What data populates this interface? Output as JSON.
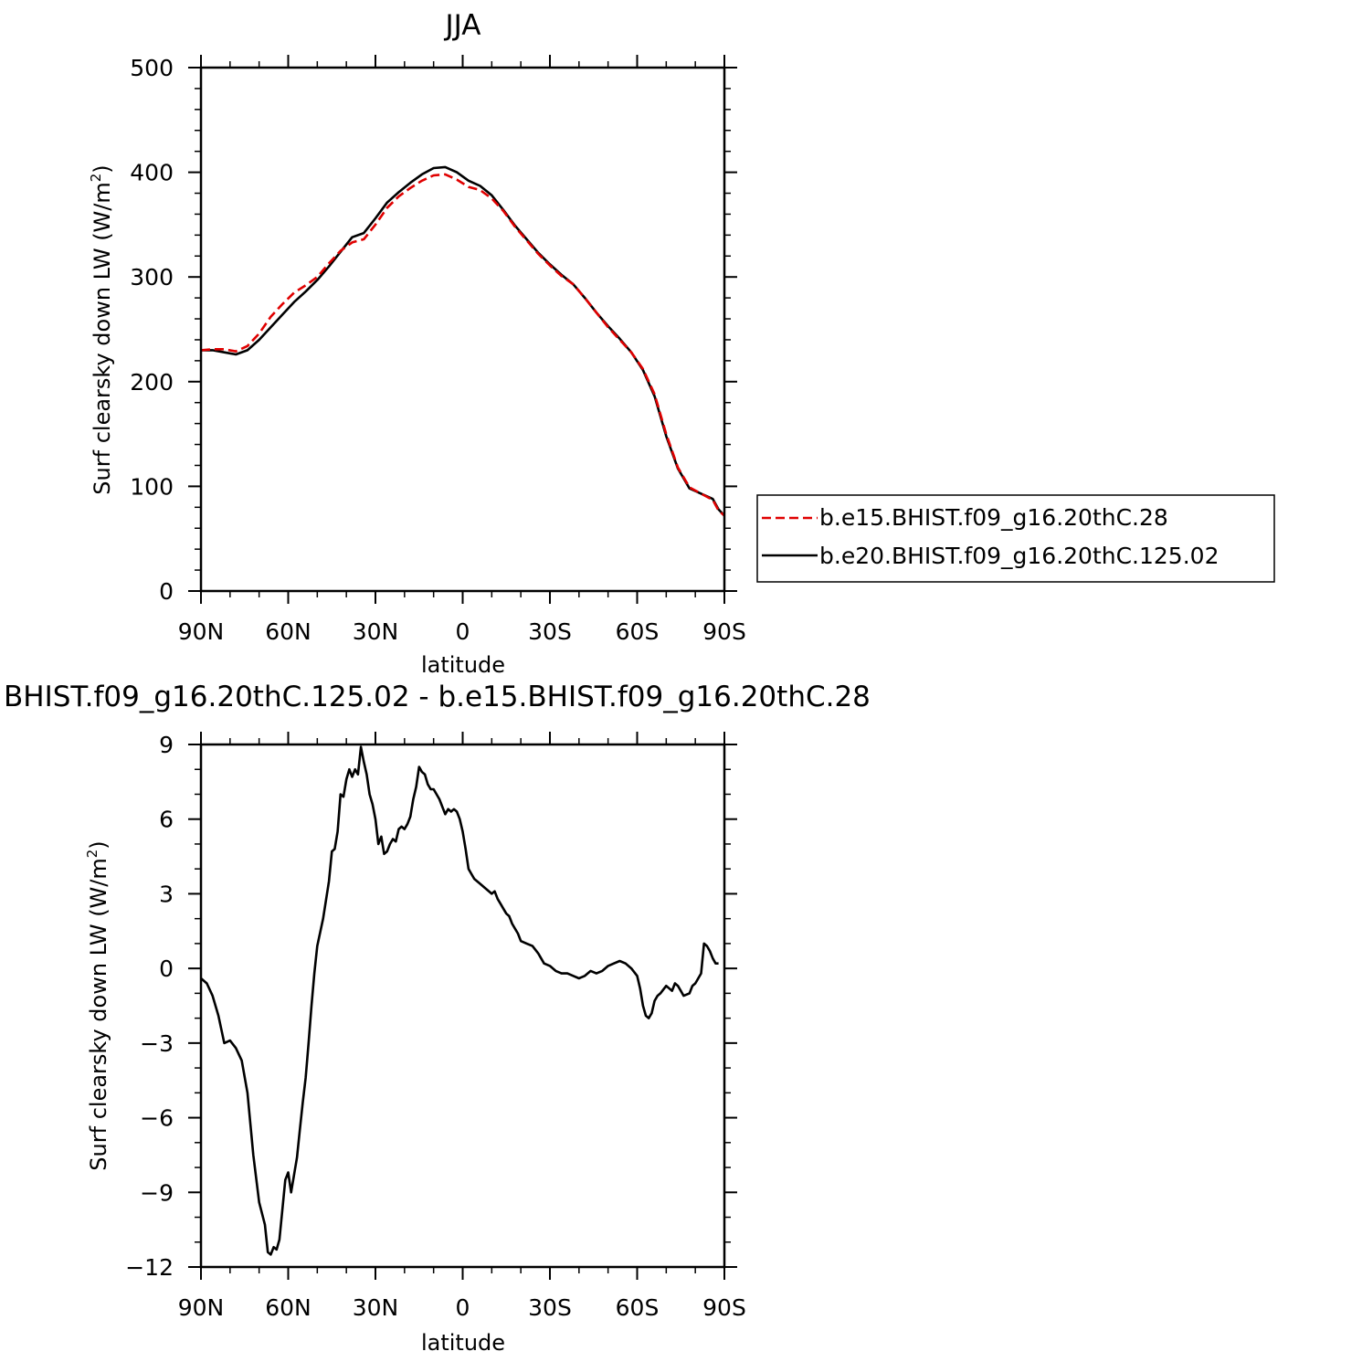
{
  "chart_data": [
    {
      "type": "line",
      "title": "JJA",
      "xlabel": "latitude",
      "ylabel": "Surf clearsky down LW (W/m",
      "ylabel_sup": "2",
      "ylabel_end": ")",
      "ylim": [
        0,
        500
      ],
      "xlim": [
        90,
        -90
      ],
      "x_tick_values": [
        90,
        60,
        30,
        0,
        -30,
        -60,
        -90
      ],
      "x_tick_labels": [
        "90N",
        "60N",
        "30N",
        "0",
        "30S",
        "60S",
        "90S"
      ],
      "y_tick_values": [
        0,
        100,
        200,
        300,
        400,
        500
      ],
      "y_tick_labels": [
        "0",
        "100",
        "200",
        "300",
        "400",
        "500"
      ],
      "legend_position": "right",
      "series": [
        {
          "name": "b.e15.BHIST.f09_g16.20thC.28",
          "color": "#e00000",
          "dash": "dashed",
          "points": [
            [
              90,
              230
            ],
            [
              86,
              231
            ],
            [
              82,
              231
            ],
            [
              78,
              229
            ],
            [
              74,
              234
            ],
            [
              70,
              246
            ],
            [
              66,
              262
            ],
            [
              62,
              274
            ],
            [
              58,
              285
            ],
            [
              54,
              292
            ],
            [
              50,
              300
            ],
            [
              46,
              313
            ],
            [
              42,
              325
            ],
            [
              38,
              333
            ],
            [
              34,
              336
            ],
            [
              30,
              350
            ],
            [
              26,
              366
            ],
            [
              22,
              377
            ],
            [
              18,
              385
            ],
            [
              14,
              392
            ],
            [
              10,
              397
            ],
            [
              6,
              398
            ],
            [
              2,
              393
            ],
            [
              -2,
              386
            ],
            [
              -6,
              383
            ],
            [
              -10,
              375
            ],
            [
              -14,
              363
            ],
            [
              -18,
              348
            ],
            [
              -22,
              335
            ],
            [
              -26,
              322
            ],
            [
              -30,
              311
            ],
            [
              -34,
              301
            ],
            [
              -38,
              293
            ],
            [
              -42,
              280
            ],
            [
              -46,
              266
            ],
            [
              -50,
              252
            ],
            [
              -54,
              240
            ],
            [
              -58,
              228
            ],
            [
              -62,
              212
            ],
            [
              -66,
              188
            ],
            [
              -70,
              150
            ],
            [
              -74,
              118
            ],
            [
              -78,
              99
            ],
            [
              -82,
              93
            ],
            [
              -86,
              87
            ],
            [
              -88,
              77
            ],
            [
              -90,
              72
            ]
          ]
        },
        {
          "name": "b.e20.BHIST.f09_g16.20thC.125.02",
          "color": "#000000",
          "dash": "solid",
          "points": [
            [
              90,
              230
            ],
            [
              86,
              230
            ],
            [
              82,
              228
            ],
            [
              78,
              226
            ],
            [
              74,
              230
            ],
            [
              70,
              240
            ],
            [
              66,
              252
            ],
            [
              62,
              264
            ],
            [
              58,
              276
            ],
            [
              54,
              286
            ],
            [
              50,
              297
            ],
            [
              46,
              310
            ],
            [
              42,
              324
            ],
            [
              38,
              338
            ],
            [
              34,
              342
            ],
            [
              30,
              356
            ],
            [
              26,
              371
            ],
            [
              22,
              381
            ],
            [
              18,
              390
            ],
            [
              14,
              398
            ],
            [
              10,
              404
            ],
            [
              6,
              405
            ],
            [
              2,
              400
            ],
            [
              -2,
              392
            ],
            [
              -6,
              387
            ],
            [
              -10,
              378
            ],
            [
              -14,
              364
            ],
            [
              -18,
              349
            ],
            [
              -22,
              336
            ],
            [
              -26,
              323
            ],
            [
              -30,
              312
            ],
            [
              -34,
              302
            ],
            [
              -38,
              293
            ],
            [
              -42,
              280
            ],
            [
              -46,
              266
            ],
            [
              -50,
              253
            ],
            [
              -54,
              241
            ],
            [
              -58,
              228
            ],
            [
              -62,
              211
            ],
            [
              -66,
              186
            ],
            [
              -70,
              148
            ],
            [
              -74,
              117
            ],
            [
              -78,
              98
            ],
            [
              -82,
              93
            ],
            [
              -86,
              88
            ],
            [
              -88,
              78
            ],
            [
              -90,
              72
            ]
          ]
        }
      ]
    },
    {
      "type": "line",
      "title": "BHIST.f09_g16.20thC.125.02 - b.e15.BHIST.f09_g16.20thC.28",
      "xlabel": "latitude",
      "ylabel": "Surf clearsky down LW (W/m",
      "ylabel_sup": "2",
      "ylabel_end": ")",
      "ylim": [
        -12,
        9
      ],
      "xlim": [
        90,
        -90
      ],
      "x_tick_values": [
        90,
        60,
        30,
        0,
        -30,
        -60,
        -90
      ],
      "x_tick_labels": [
        "90N",
        "60N",
        "30N",
        "0",
        "30S",
        "60S",
        "90S"
      ],
      "y_tick_values": [
        -12,
        -9,
        -6,
        -3,
        0,
        3,
        6,
        9
      ],
      "y_tick_labels": [
        "−12",
        "−9",
        "−6",
        "−3",
        "0",
        "3",
        "6",
        "9"
      ],
      "series": [
        {
          "color": "#000000",
          "dash": "solid",
          "points": [
            [
              90,
              -0.4
            ],
            [
              88,
              -0.6
            ],
            [
              86,
              -1.1
            ],
            [
              84,
              -1.9
            ],
            [
              82,
              -3.0
            ],
            [
              80,
              -2.9
            ],
            [
              78,
              -3.2
            ],
            [
              76,
              -3.7
            ],
            [
              74,
              -5.0
            ],
            [
              72,
              -7.5
            ],
            [
              70,
              -9.4
            ],
            [
              68,
              -10.3
            ],
            [
              67,
              -11.4
            ],
            [
              66,
              -11.5
            ],
            [
              65,
              -11.2
            ],
            [
              64,
              -11.3
            ],
            [
              63,
              -10.9
            ],
            [
              62,
              -9.7
            ],
            [
              61,
              -8.5
            ],
            [
              60,
              -8.2
            ],
            [
              59,
              -9.0
            ],
            [
              58,
              -8.3
            ],
            [
              57,
              -7.6
            ],
            [
              56,
              -6.5
            ],
            [
              55,
              -5.4
            ],
            [
              54,
              -4.4
            ],
            [
              53,
              -3.0
            ],
            [
              52,
              -1.5
            ],
            [
              51,
              -0.2
            ],
            [
              50,
              0.9
            ],
            [
              48,
              2.0
            ],
            [
              46,
              3.5
            ],
            [
              45,
              4.7
            ],
            [
              44,
              4.8
            ],
            [
              43,
              5.5
            ],
            [
              42,
              7.0
            ],
            [
              41,
              6.9
            ],
            [
              40,
              7.6
            ],
            [
              39,
              8.0
            ],
            [
              38,
              7.7
            ],
            [
              37,
              8.0
            ],
            [
              36,
              7.8
            ],
            [
              35,
              8.9
            ],
            [
              34,
              8.3
            ],
            [
              33,
              7.8
            ],
            [
              32,
              7.0
            ],
            [
              31,
              6.6
            ],
            [
              30,
              6.0
            ],
            [
              29,
              5.0
            ],
            [
              28,
              5.3
            ],
            [
              27,
              4.6
            ],
            [
              26,
              4.7
            ],
            [
              25,
              5.0
            ],
            [
              24,
              5.2
            ],
            [
              23,
              5.1
            ],
            [
              22,
              5.6
            ],
            [
              21,
              5.7
            ],
            [
              20,
              5.6
            ],
            [
              19,
              5.8
            ],
            [
              18,
              6.1
            ],
            [
              17,
              6.8
            ],
            [
              16,
              7.3
            ],
            [
              15,
              8.1
            ],
            [
              14,
              7.9
            ],
            [
              13,
              7.8
            ],
            [
              12,
              7.4
            ],
            [
              11,
              7.2
            ],
            [
              10,
              7.2
            ],
            [
              9,
              7.0
            ],
            [
              8,
              6.8
            ],
            [
              7,
              6.5
            ],
            [
              6,
              6.2
            ],
            [
              5,
              6.4
            ],
            [
              4,
              6.3
            ],
            [
              3,
              6.4
            ],
            [
              2,
              6.3
            ],
            [
              1,
              6.0
            ],
            [
              0,
              5.5
            ],
            [
              -1,
              4.8
            ],
            [
              -2,
              4.0
            ],
            [
              -3,
              3.8
            ],
            [
              -4,
              3.6
            ],
            [
              -6,
              3.4
            ],
            [
              -8,
              3.2
            ],
            [
              -10,
              3.0
            ],
            [
              -11,
              3.1
            ],
            [
              -12,
              2.8
            ],
            [
              -13,
              2.6
            ],
            [
              -14,
              2.4
            ],
            [
              -15,
              2.2
            ],
            [
              -16,
              2.1
            ],
            [
              -17,
              1.8
            ],
            [
              -18,
              1.6
            ],
            [
              -19,
              1.4
            ],
            [
              -20,
              1.1
            ],
            [
              -22,
              1.0
            ],
            [
              -24,
              0.9
            ],
            [
              -26,
              0.6
            ],
            [
              -28,
              0.2
            ],
            [
              -30,
              0.1
            ],
            [
              -32,
              -0.1
            ],
            [
              -34,
              -0.2
            ],
            [
              -36,
              -0.2
            ],
            [
              -38,
              -0.3
            ],
            [
              -40,
              -0.4
            ],
            [
              -42,
              -0.3
            ],
            [
              -44,
              -0.1
            ],
            [
              -46,
              -0.2
            ],
            [
              -48,
              -0.1
            ],
            [
              -50,
              0.1
            ],
            [
              -52,
              0.2
            ],
            [
              -54,
              0.3
            ],
            [
              -56,
              0.2
            ],
            [
              -58,
              0.0
            ],
            [
              -60,
              -0.3
            ],
            [
              -61,
              -0.8
            ],
            [
              -62,
              -1.5
            ],
            [
              -63,
              -1.9
            ],
            [
              -64,
              -2.0
            ],
            [
              -65,
              -1.8
            ],
            [
              -66,
              -1.3
            ],
            [
              -67,
              -1.1
            ],
            [
              -68,
              -1.0
            ],
            [
              -70,
              -0.7
            ],
            [
              -72,
              -0.9
            ],
            [
              -73,
              -0.6
            ],
            [
              -74,
              -0.7
            ],
            [
              -75,
              -0.9
            ],
            [
              -76,
              -1.1
            ],
            [
              -78,
              -1.0
            ],
            [
              -79,
              -0.7
            ],
            [
              -80,
              -0.6
            ],
            [
              -81,
              -0.4
            ],
            [
              -82,
              -0.2
            ],
            [
              -83,
              1.0
            ],
            [
              -84,
              0.9
            ],
            [
              -85,
              0.7
            ],
            [
              -86,
              0.4
            ],
            [
              -87,
              0.2
            ],
            [
              -88,
              0.2
            ]
          ]
        }
      ]
    }
  ],
  "legend": {
    "items": [
      "b.e15.BHIST.f09_g16.20thC.28",
      "b.e20.BHIST.f09_g16.20thC.125.02"
    ]
  }
}
